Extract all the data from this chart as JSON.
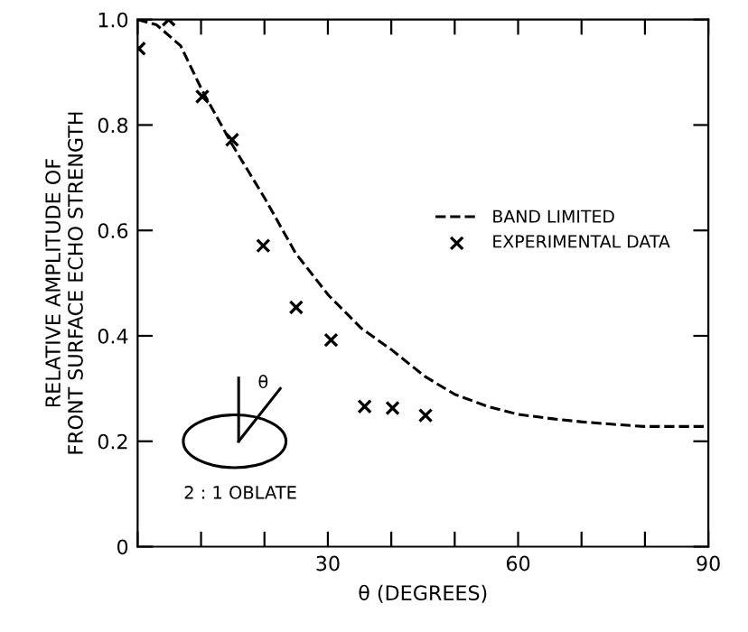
{
  "chart_data": {
    "type": "line",
    "xlabel": "θ (DEGREES)",
    "ylabel": "RELATIVE AMPLITUDE OF\nFRONT SURFACE ECHO STRENGTH",
    "xlim": [
      0,
      90
    ],
    "ylim": [
      0,
      1.0
    ],
    "xticks": [
      {
        "value": 0,
        "label": null
      },
      {
        "value": 10,
        "label": null
      },
      {
        "value": 20,
        "label": null
      },
      30,
      {
        "value": 40,
        "label": null
      },
      {
        "value": 50,
        "label": null
      },
      60,
      {
        "value": 70,
        "label": null
      },
      {
        "value": 80,
        "label": null
      },
      90
    ],
    "yticks": [
      0,
      {
        "value": 0.2,
        "label": "0.2"
      },
      {
        "value": 0.4,
        "label": "0.4"
      },
      {
        "value": 0.6,
        "label": "0.6"
      },
      {
        "value": 0.8,
        "label": "0.8"
      },
      {
        "value": 1.0,
        "label": "1.0"
      }
    ],
    "legend": "right",
    "grid": false,
    "series": [
      {
        "name": "BAND LIMITED",
        "color": "#000000",
        "line_style": "dashed",
        "marker": "none",
        "x": [
          0,
          3,
          6.8,
          10.2,
          14.9,
          20.1,
          24.9,
          30.1,
          35.3,
          40,
          45.3,
          50,
          55.2,
          60,
          65.2,
          69.9,
          75.1,
          79.9,
          90
        ],
        "values": [
          1.0,
          0.99,
          0.95,
          0.865,
          0.763,
          0.66,
          0.557,
          0.477,
          0.414,
          0.374,
          0.323,
          0.289,
          0.266,
          0.251,
          0.243,
          0.237,
          0.232,
          0.228,
          0.228
        ]
      },
      {
        "name": "EXPERIMENTAL DATA",
        "type": "scatter",
        "color": "#000000",
        "marker": "cross",
        "x": [
          0.2,
          4.9,
          10.2,
          14.9,
          19.8,
          25.0,
          30.5,
          35.8,
          40.2,
          45.4
        ],
        "values": [
          0.945,
          1.0,
          0.854,
          0.772,
          0.571,
          0.454,
          0.392,
          0.266,
          0.263,
          0.249
        ]
      }
    ],
    "annotations": [
      "θ",
      "2 : 1 OBLATE"
    ]
  }
}
